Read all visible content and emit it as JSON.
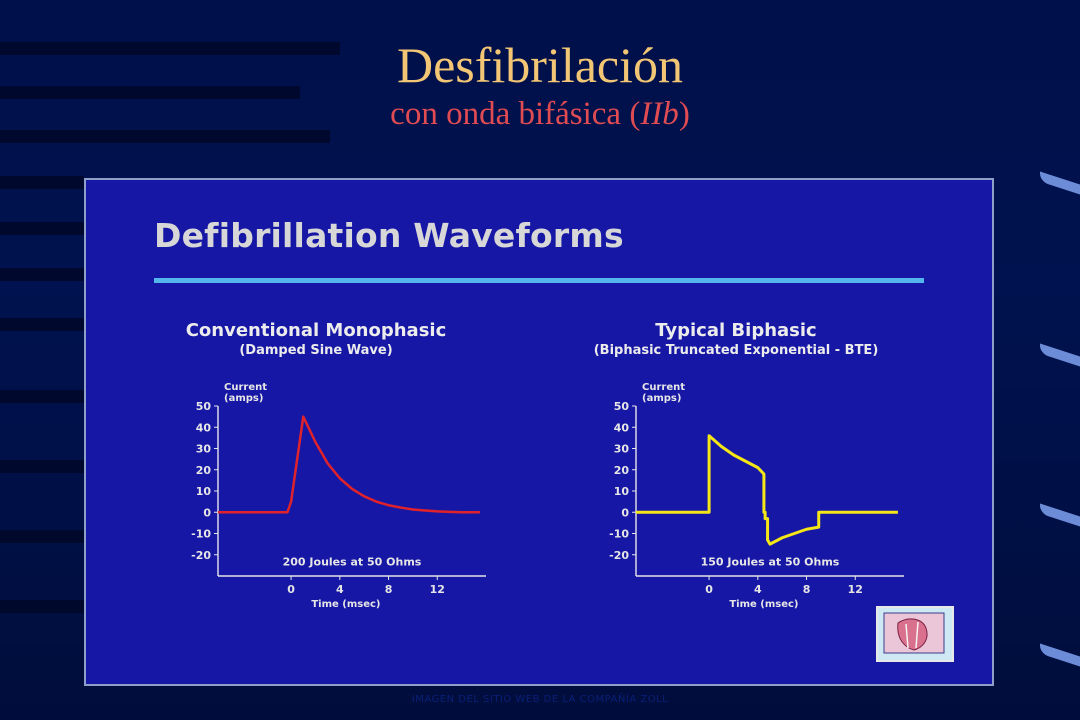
{
  "slide": {
    "title_main": "Desfibrilación",
    "title_sub_prefix": "con onda bifásica (",
    "title_sub_italic": "IIb",
    "title_sub_suffix": ")",
    "panel_title": "Defibrillation Waveforms",
    "credit": "IMAGEN DEL SITIO WEB DE LA COMPAÑÍA ZOLL"
  },
  "colors": {
    "title_main": "#f2c674",
    "title_sub": "#e04c52",
    "panel_bg": "#1717a6",
    "rule": "#55b6ee",
    "monophasic_line": "#e0232a",
    "biphasic_line": "#f5e616"
  },
  "chart_data": [
    {
      "type": "line",
      "title": "Conventional Monophasic",
      "subtitle": "(Damped Sine Wave)",
      "ylabel": "Current\n(amps)",
      "xlabel": "Time (msec)",
      "ylim": [
        -30,
        50
      ],
      "xlim": [
        -6,
        16
      ],
      "yticks": [
        "50",
        "40",
        "30",
        "20",
        "10",
        "0",
        "-10",
        "-20"
      ],
      "xticks": [
        "0",
        "4",
        "8",
        "12"
      ],
      "annotation": "200 Joules at 50 Ohms",
      "grid": false,
      "series": [
        {
          "x": [
            -6,
            -0.3,
            0,
            1,
            2,
            3,
            4,
            5,
            6,
            7,
            8,
            9,
            10,
            11,
            12,
            13,
            14,
            15.5
          ],
          "y": [
            0,
            0,
            5,
            45,
            33,
            23,
            16,
            11,
            7.5,
            5,
            3.3,
            2.2,
            1.3,
            0.8,
            0.4,
            0.2,
            0,
            0
          ]
        }
      ]
    },
    {
      "type": "line",
      "title": "Typical Biphasic",
      "subtitle": "(Biphasic Truncated Exponential - BTE)",
      "ylabel": "Current\n(amps)",
      "xlabel": "Time (msec)",
      "ylim": [
        -30,
        50
      ],
      "xlim": [
        -6,
        16
      ],
      "yticks": [
        "50",
        "40",
        "30",
        "20",
        "10",
        "0",
        "-10",
        "-20"
      ],
      "xticks": [
        "0",
        "4",
        "8",
        "12"
      ],
      "annotation": "150 Joules at 50 Ohms",
      "grid": false,
      "series": [
        {
          "x": [
            -6,
            0,
            0,
            1,
            2,
            3,
            4,
            4.5,
            4.5,
            4.6,
            4.6,
            4.8,
            4.8,
            5,
            6,
            7,
            8,
            9,
            9,
            9,
            11,
            15.5
          ],
          "y": [
            0,
            0,
            36,
            31,
            27,
            24,
            21,
            18,
            0,
            0,
            -3,
            -3,
            -13,
            -15,
            -12,
            -10,
            -8,
            -7,
            -3,
            0,
            0,
            0
          ]
        }
      ]
    }
  ]
}
